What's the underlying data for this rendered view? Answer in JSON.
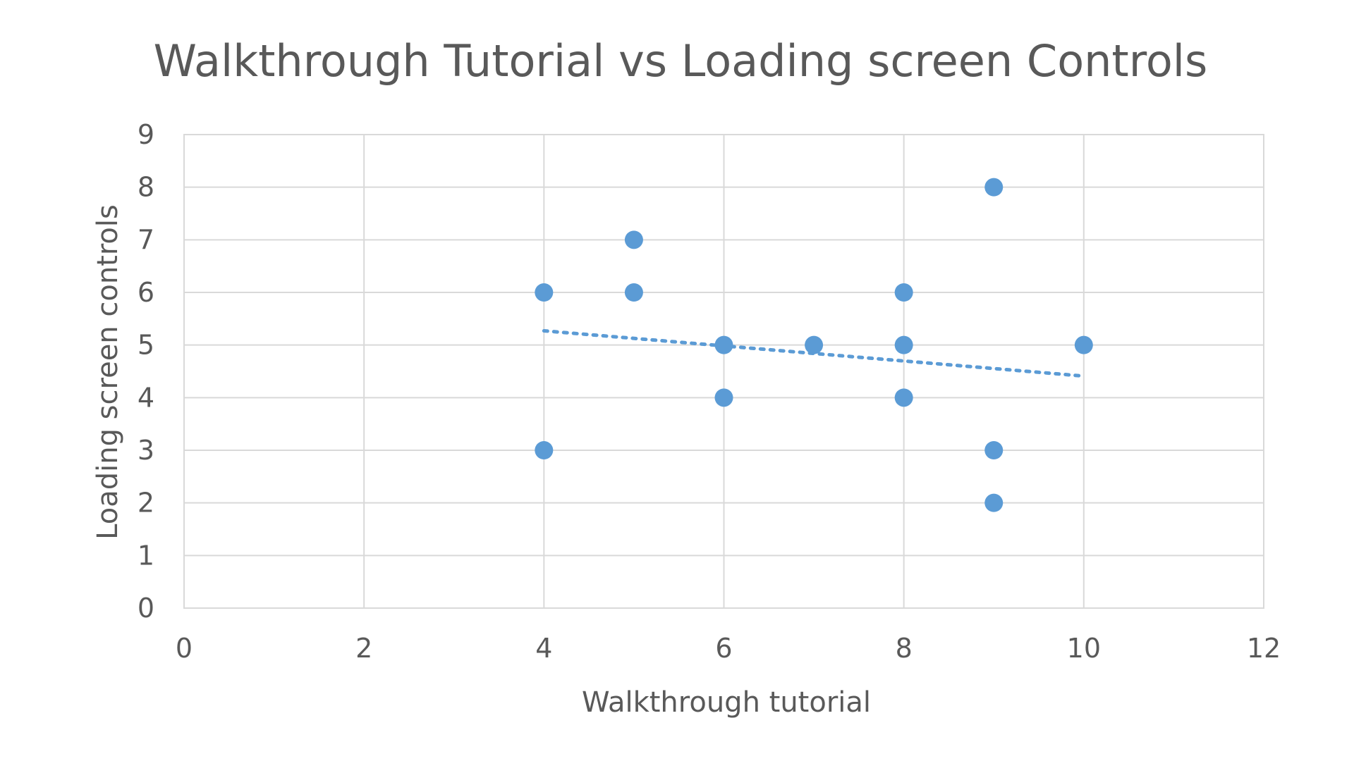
{
  "chart_data": {
    "type": "scatter",
    "title": "Walkthrough Tutorial vs Loading screen Controls",
    "xlabel": "Walkthrough tutorial",
    "ylabel": "Loading screen controls",
    "xlim": [
      0,
      12
    ],
    "ylim": [
      0,
      9
    ],
    "xticks": [
      0,
      2,
      4,
      6,
      8,
      10,
      12
    ],
    "yticks": [
      0,
      1,
      2,
      3,
      4,
      5,
      6,
      7,
      8,
      9
    ],
    "grid": true,
    "legend": "none",
    "series": [
      {
        "color": "#5b9bd5",
        "points": [
          {
            "x": 4,
            "y": 6
          },
          {
            "x": 4,
            "y": 3
          },
          {
            "x": 5,
            "y": 7
          },
          {
            "x": 5,
            "y": 6
          },
          {
            "x": 6,
            "y": 5
          },
          {
            "x": 6,
            "y": 4
          },
          {
            "x": 7,
            "y": 5
          },
          {
            "x": 8,
            "y": 6
          },
          {
            "x": 8,
            "y": 5
          },
          {
            "x": 8,
            "y": 4
          },
          {
            "x": 9,
            "y": 8
          },
          {
            "x": 9,
            "y": 3
          },
          {
            "x": 9,
            "y": 2
          },
          {
            "x": 10,
            "y": 5
          }
        ],
        "trendline": {
          "type": "linear",
          "style": "dotted",
          "x_start": 4,
          "y_start": 5.27,
          "x_end": 10,
          "y_end": 4.41
        }
      }
    ]
  }
}
